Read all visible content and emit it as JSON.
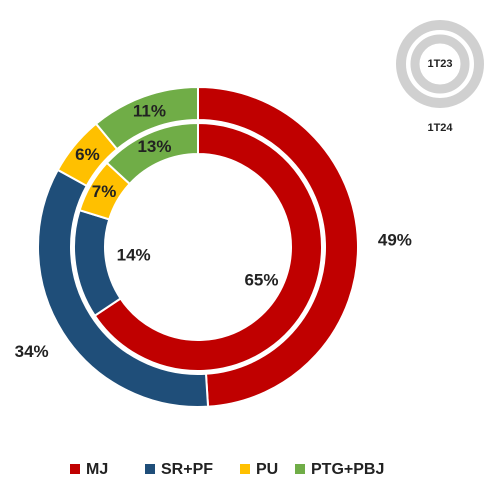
{
  "chart_data": {
    "type": "donut",
    "categories": [
      "MJ",
      "SR+PF",
      "PU",
      "PTG+PBJ"
    ],
    "colors": [
      "#c00000",
      "#1f4e79",
      "#ffc000",
      "#70ad47"
    ],
    "series": [
      {
        "name": "1T23",
        "values": [
          65,
          14,
          7,
          13
        ],
        "value_labels": [
          "65%",
          "14%",
          "7%",
          "13%"
        ]
      },
      {
        "name": "1T24",
        "values": [
          49,
          34,
          6,
          11
        ],
        "value_labels": [
          "49%",
          "34%",
          "6%",
          "11%"
        ]
      }
    ],
    "legend": "bottom"
  }
}
